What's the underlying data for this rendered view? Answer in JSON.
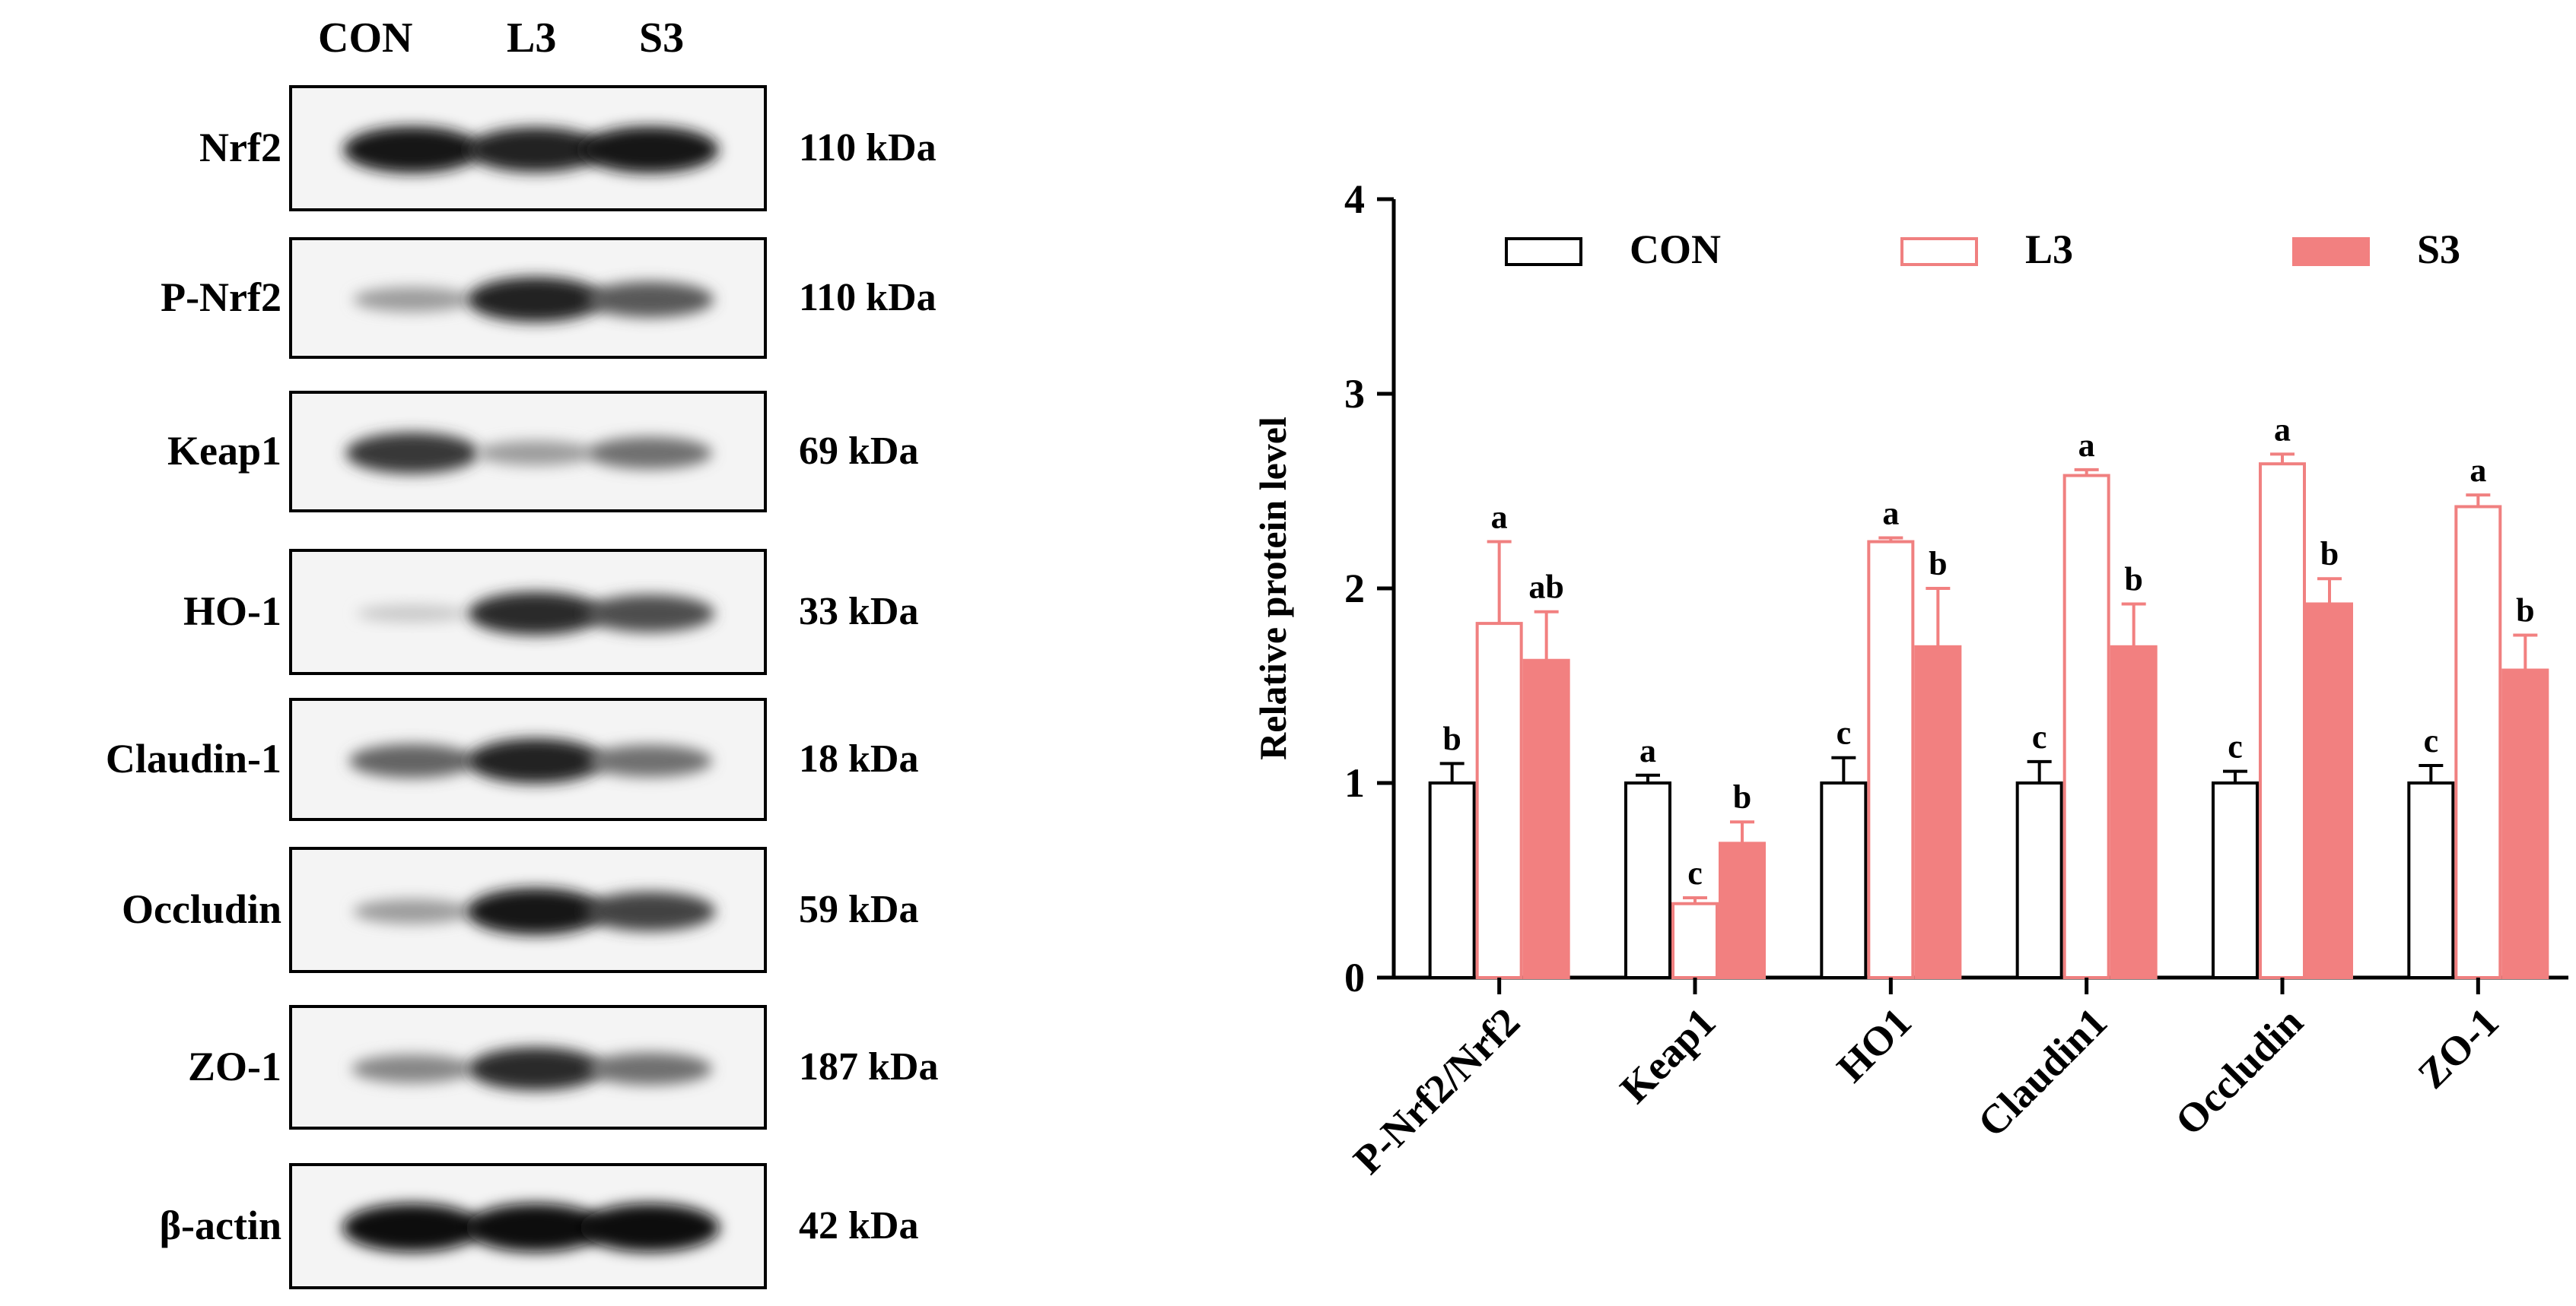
{
  "western_blot": {
    "lanes": [
      "CON",
      "L3",
      "S3"
    ],
    "rows": [
      {
        "protein": "Nrf2",
        "size": "110 kDa",
        "intensity": [
          0.95,
          0.9,
          0.95
        ]
      },
      {
        "protein": "P-Nrf2",
        "size": "110 kDa",
        "intensity": [
          0.35,
          0.9,
          0.65
        ]
      },
      {
        "protein": "Keap1",
        "size": "69 kDa",
        "intensity": [
          0.8,
          0.35,
          0.55
        ]
      },
      {
        "protein": "HO-1",
        "size": "33 kDa",
        "intensity": [
          0.15,
          0.85,
          0.7
        ]
      },
      {
        "protein": "Claudin-1",
        "size": "18 kDa",
        "intensity": [
          0.6,
          0.9,
          0.55
        ]
      },
      {
        "protein": "Occludin",
        "size": "59 kDa",
        "intensity": [
          0.35,
          0.95,
          0.75
        ]
      },
      {
        "protein": "ZO-1",
        "size": "187 kDa",
        "intensity": [
          0.45,
          0.85,
          0.55
        ]
      },
      {
        "protein": "β-actin",
        "size": "42 kDa",
        "intensity": [
          1.0,
          1.0,
          1.0
        ]
      }
    ]
  },
  "colors": {
    "con": "#ffffff",
    "l3_stroke": "#f08080",
    "s3_fill": "#f28080",
    "axis": "#000000"
  },
  "chart_data": {
    "type": "bar",
    "title": "",
    "xlabel": "",
    "ylabel": "Relative protein level",
    "ylim": [
      0,
      4
    ],
    "yticks": [
      0,
      1,
      2,
      3,
      4
    ],
    "legend_position": "top",
    "categories": [
      "P-Nrf2/Nrf2",
      "Keap1",
      "HO1",
      "Claudin1",
      "Occludin",
      "ZO-1"
    ],
    "series": [
      {
        "name": "CON",
        "style": "outline-black",
        "values": [
          1.0,
          1.0,
          1.0,
          1.0,
          1.0,
          1.0
        ],
        "errors": [
          0.1,
          0.04,
          0.13,
          0.11,
          0.06,
          0.09
        ],
        "letters": [
          "b",
          "a",
          "c",
          "c",
          "c",
          "c"
        ]
      },
      {
        "name": "L3",
        "style": "outline-red",
        "values": [
          1.82,
          0.38,
          2.24,
          2.58,
          2.64,
          2.42
        ],
        "errors": [
          0.42,
          0.03,
          0.02,
          0.03,
          0.05,
          0.06
        ],
        "letters": [
          "a",
          "c",
          "a",
          "a",
          "a",
          "a"
        ]
      },
      {
        "name": "S3",
        "style": "filled-red",
        "values": [
          1.63,
          0.69,
          1.7,
          1.7,
          1.92,
          1.58
        ],
        "errors": [
          0.25,
          0.11,
          0.3,
          0.22,
          0.13,
          0.18
        ],
        "letters": [
          "ab",
          "b",
          "b",
          "b",
          "b",
          "b"
        ]
      }
    ]
  }
}
